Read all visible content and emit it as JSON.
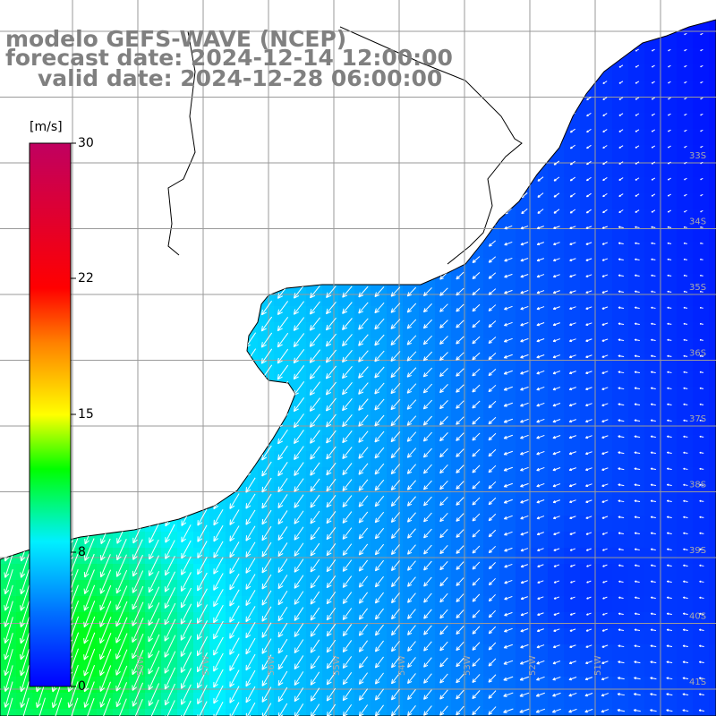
{
  "header": {
    "model_line": "modelo GEFS-WAVE (NCEP)",
    "forecast_line": "forecast date: 2024-12-14 12:00:00",
    "valid_line": "valid date: 2024-12-28 06:00:00"
  },
  "colorbar": {
    "unit": "[m/s]",
    "ticks": [
      "30",
      "22",
      "15",
      "8",
      "0"
    ],
    "min": 0,
    "max": 30,
    "colors": [
      "#0000ff",
      "#00aaff",
      "#00ffff",
      "#00ff00",
      "#ffff00",
      "#ff8000",
      "#ff0000",
      "#c00060"
    ]
  },
  "map": {
    "variable": "wind speed and direction",
    "land_color": "#ffffff",
    "coastline_color": "#000000",
    "grid_color": "#9a9a9a",
    "vector_color": "#ffffff",
    "lon_labels": [
      "58W",
      "57W",
      "56W",
      "55W",
      "54W",
      "53W",
      "52W",
      "51W"
    ],
    "lat_labels": [
      "33S",
      "34S",
      "35S",
      "36S",
      "37S",
      "38S",
      "39S",
      "40S",
      "41S"
    ],
    "dominant_wind": "northeasterly",
    "speed_range_ms": [
      1,
      12
    ]
  }
}
